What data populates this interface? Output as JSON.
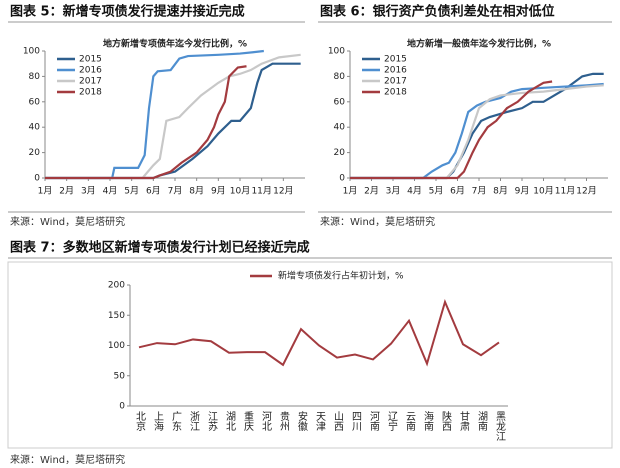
{
  "chart_data": [
    {
      "type": "line",
      "caption": "图表 5：新增专项债发行提速并接近完成",
      "title": "地方新增专项债年迄今发行比例，%",
      "source": "来源：Wind，莫尼塔研究",
      "xlim": [
        1,
        13
      ],
      "xticks": [
        {
          "value": 1,
          "label": "1月"
        },
        {
          "value": 2,
          "label": "2月"
        },
        {
          "value": 3,
          "label": "3月"
        },
        {
          "value": 4,
          "label": "4月"
        },
        {
          "value": 5,
          "label": "5月"
        },
        {
          "value": 6,
          "label": "6月"
        },
        {
          "value": 7,
          "label": "7月"
        },
        {
          "value": 8,
          "label": "8月"
        },
        {
          "value": 9,
          "label": "9月"
        },
        {
          "value": 10,
          "label": "10月"
        },
        {
          "value": 11,
          "label": "11月"
        },
        {
          "value": 12,
          "label": "12月"
        }
      ],
      "ylim": [
        0,
        100
      ],
      "yticks": [
        0,
        20,
        40,
        60,
        80,
        100
      ],
      "legend": "top-left",
      "series": [
        {
          "name": "2015",
          "color": "#2e5f8e",
          "x": [
            1,
            6.0,
            6.3,
            7.0,
            7.8,
            8.5,
            9.0,
            9.6,
            10.0,
            10.5,
            10.8,
            11.0,
            11.5,
            12.8
          ],
          "values": [
            0,
            0,
            2,
            5,
            15,
            25,
            35,
            45,
            45,
            55,
            75,
            85,
            90,
            90
          ]
        },
        {
          "name": "2016",
          "color": "#4f8fd0",
          "x": [
            1,
            4.1,
            4.2,
            5.3,
            5.6,
            5.8,
            6.0,
            6.2,
            6.8,
            7.2,
            7.6,
            9.0,
            10.0,
            10.6,
            11.1
          ],
          "values": [
            0,
            0,
            8,
            8,
            18,
            55,
            80,
            84,
            85,
            94,
            96,
            97,
            98,
            99,
            100
          ]
        },
        {
          "name": "2017",
          "color": "#c8c8c8",
          "x": [
            1,
            5.5,
            6.0,
            6.3,
            6.6,
            7.2,
            7.6,
            8.2,
            9.0,
            9.5,
            10.0,
            10.5,
            11.0,
            11.8,
            12.8
          ],
          "values": [
            0,
            0,
            10,
            15,
            45,
            48,
            55,
            65,
            75,
            80,
            82,
            85,
            90,
            95,
            97
          ]
        },
        {
          "name": "2018",
          "color": "#a33b3f",
          "x": [
            1,
            6.0,
            6.3,
            6.8,
            7.3,
            8.0,
            8.5,
            8.8,
            9.0,
            9.3,
            9.5,
            9.9,
            10.3
          ],
          "values": [
            0,
            0,
            2,
            5,
            12,
            20,
            30,
            40,
            50,
            60,
            80,
            87,
            88
          ]
        }
      ]
    },
    {
      "type": "line",
      "caption": "图表 6：银行资产负债利差处在相对低位",
      "title": "地方新增一般债年迄今发行比例，%",
      "source": "来源：Wind，莫尼塔研究",
      "xlim": [
        1,
        13
      ],
      "xticks": [
        {
          "value": 1,
          "label": "1月"
        },
        {
          "value": 2,
          "label": "2月"
        },
        {
          "value": 3,
          "label": "3月"
        },
        {
          "value": 4,
          "label": "4月"
        },
        {
          "value": 5,
          "label": "5月"
        },
        {
          "value": 6,
          "label": "6月"
        },
        {
          "value": 7,
          "label": "7月"
        },
        {
          "value": 8,
          "label": "8月"
        },
        {
          "value": 9,
          "label": "9月"
        },
        {
          "value": 10,
          "label": "10月"
        },
        {
          "value": 11,
          "label": "11月"
        },
        {
          "value": 12,
          "label": "12月"
        }
      ],
      "ylim": [
        0,
        100
      ],
      "yticks": [
        0,
        20,
        40,
        60,
        80,
        100
      ],
      "legend": "top-left",
      "series": [
        {
          "name": "2015",
          "color": "#2e5f8e",
          "x": [
            1,
            5.5,
            5.8,
            6.3,
            6.7,
            7.1,
            7.5,
            8.3,
            9.0,
            9.5,
            10.0,
            10.5,
            11.0,
            11.4,
            11.8,
            12.3,
            12.8
          ],
          "values": [
            0,
            0,
            5,
            20,
            35,
            45,
            48,
            52,
            55,
            60,
            60,
            65,
            70,
            75,
            80,
            82,
            82
          ]
        },
        {
          "name": "2016",
          "color": "#4f8fd0",
          "x": [
            1,
            4.4,
            4.8,
            5.3,
            5.6,
            5.9,
            6.2,
            6.5,
            6.9,
            7.3,
            8.0,
            8.5,
            9.0,
            10.0,
            11.0,
            12.0,
            12.8
          ],
          "values": [
            0,
            0,
            5,
            10,
            12,
            20,
            35,
            52,
            57,
            60,
            63,
            68,
            70,
            71,
            72,
            73,
            74
          ]
        },
        {
          "name": "2017",
          "color": "#c8c8c8",
          "x": [
            1,
            5.5,
            6.0,
            6.5,
            7.0,
            7.5,
            8.0,
            9.0,
            10.0,
            11.0,
            12.0,
            12.8
          ],
          "values": [
            0,
            0,
            10,
            30,
            55,
            62,
            65,
            67,
            68,
            70,
            72,
            73
          ]
        },
        {
          "name": "2018",
          "color": "#a33b3f",
          "x": [
            1,
            6.0,
            6.3,
            6.7,
            7.0,
            7.4,
            7.8,
            8.3,
            8.8,
            9.3,
            9.7,
            10.0,
            10.4
          ],
          "values": [
            0,
            0,
            5,
            20,
            30,
            40,
            45,
            55,
            60,
            68,
            72,
            75,
            76
          ]
        }
      ]
    },
    {
      "type": "category-line",
      "caption": "图表 7：多数地区新增专项债发行计划已经接近完成",
      "source": "来源：Wind，莫尼塔研究",
      "categories": [
        "北京",
        "上海",
        "广东",
        "浙江",
        "江苏",
        "湖北",
        "重庆",
        "河北",
        "贵州",
        "安徽",
        "天津",
        "山西",
        "四川",
        "河南",
        "辽宁",
        "云南",
        "海南",
        "陕西",
        "甘肃",
        "湖南",
        "黑龙江"
      ],
      "ylim": [
        0,
        200
      ],
      "yticks": [
        0,
        50,
        100,
        150,
        200
      ],
      "legend": "top",
      "series": [
        {
          "name": "新增专项债发行占年初计划，%",
          "color": "#a33b3f",
          "values": [
            97,
            104,
            102,
            110,
            107,
            88,
            89,
            89,
            68,
            127,
            100,
            80,
            85,
            77,
            103,
            141,
            70,
            172,
            102,
            84,
            105
          ]
        }
      ]
    }
  ]
}
